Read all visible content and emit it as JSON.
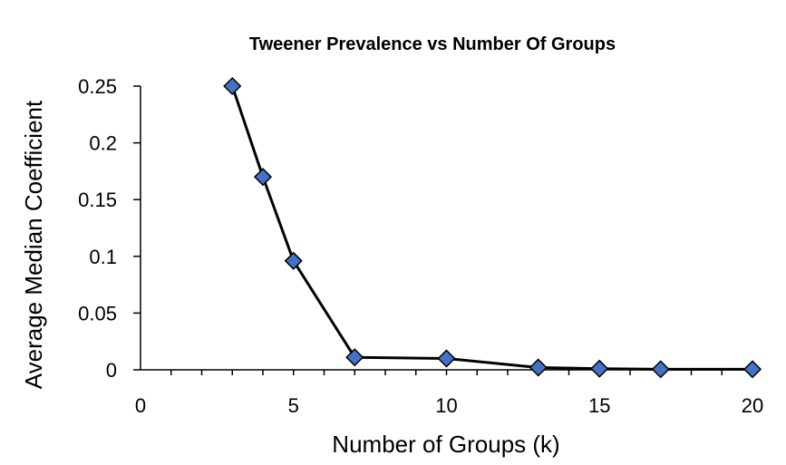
{
  "chart_data": {
    "type": "scatter",
    "title": "Tweener Prevalence vs Number Of Groups",
    "xlabel": "Number of Groups (k)",
    "ylabel": "Average Median Coefficient",
    "xlim": [
      0,
      20
    ],
    "ylim": [
      0,
      0.25
    ],
    "x_ticks": [
      0,
      5,
      10,
      15,
      20
    ],
    "x_tick_labels": [
      "0",
      "5",
      "10",
      "15",
      "20"
    ],
    "y_ticks": [
      0,
      0.05,
      0.1,
      0.15,
      0.2,
      0.25
    ],
    "y_tick_labels": [
      "0",
      "0.05",
      "0.1",
      "0.15",
      "0.2",
      "0.25"
    ],
    "grid": false,
    "legend": "none",
    "marker": "diamond",
    "line_connected": true,
    "series": [
      {
        "x": [
          3,
          4,
          5,
          7,
          10,
          13,
          15,
          17,
          20
        ],
        "y": [
          0.25,
          0.17,
          0.096,
          0.011,
          0.01,
          0.002,
          0.001,
          0.0005,
          0.0005
        ],
        "marker_color": "#4472C4",
        "line_color": "#000000"
      }
    ]
  }
}
